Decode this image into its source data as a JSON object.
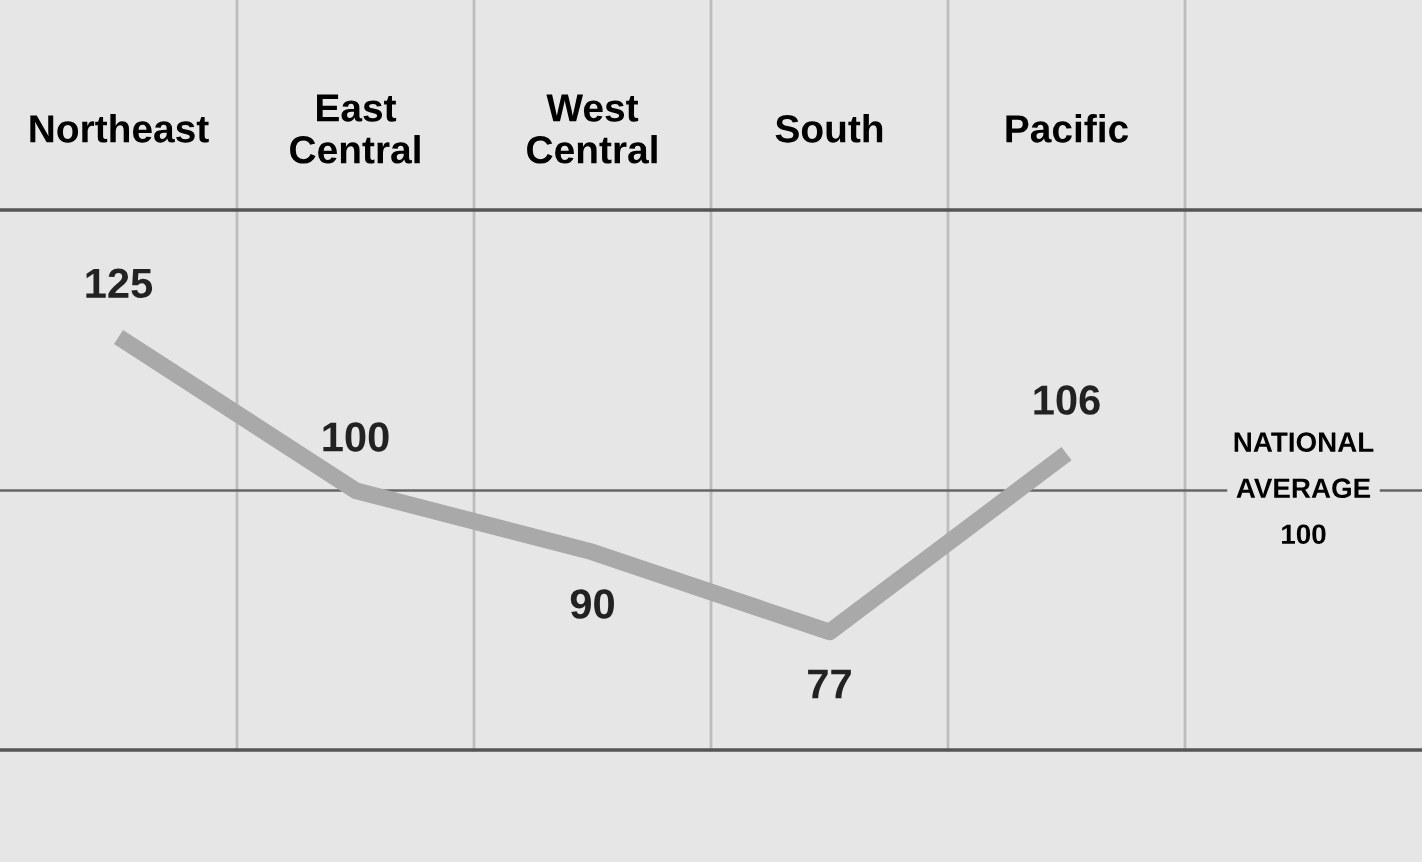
{
  "chart_data": {
    "type": "line",
    "categories": [
      "Northeast",
      "East\nCentral",
      "West\nCentral",
      "South",
      "Pacific"
    ],
    "series": [
      {
        "color": "#a9a9a9",
        "values": [
          125,
          100,
          90,
          77,
          106
        ]
      }
    ],
    "data_labels": true,
    "marker": "none",
    "line_style": "solid",
    "ref_lines": [
      {
        "axis": "y",
        "value": 100,
        "label": "NATIONAL\nAVERAGE\n100",
        "color": "#666666"
      }
    ],
    "legend": false
  }
}
